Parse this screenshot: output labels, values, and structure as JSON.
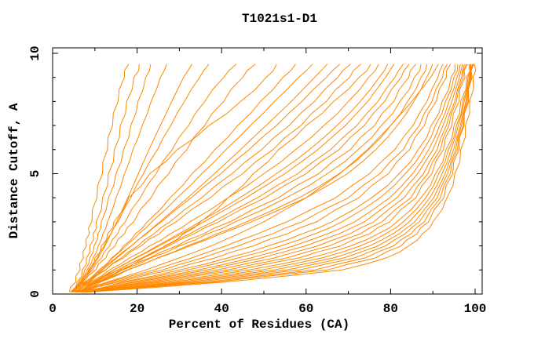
{
  "title": "T1021s1-D1",
  "chart_data": {
    "type": "line",
    "title": "T1021s1-D1",
    "xlabel": "Percent of Residues (CA)",
    "ylabel": "Distance Cutoff, A",
    "xlim": [
      0,
      100
    ],
    "ylim": [
      0,
      10
    ],
    "x_major_ticks": [
      0,
      20,
      40,
      60,
      80,
      100
    ],
    "x_minor_ticks": [
      10,
      30,
      50,
      70,
      90
    ],
    "y_major_ticks": [
      0,
      5,
      10
    ],
    "y_minor_ticks": [
      1,
      2,
      3,
      4,
      6,
      7,
      8,
      9
    ],
    "grid": false,
    "legend": "none",
    "line_color": "#ff8800",
    "axis_color": "#000000",
    "series_format": "each series lists Percent of Residues (x) at the shared y_levels (Distance Cutoff)",
    "y_levels": [
      0.08,
      0.5,
      1,
      1.5,
      2,
      2.5,
      3,
      4,
      5,
      6,
      7,
      8,
      9,
      9.55
    ],
    "series": [
      [
        4.0,
        5.5,
        6.5,
        7.3,
        8.0,
        8.7,
        9.3,
        10.5,
        11.8,
        13.0,
        14.2,
        15.5,
        17.0,
        18.0
      ],
      [
        4.2,
        5.8,
        7.0,
        8.0,
        8.8,
        9.6,
        10.3,
        11.8,
        13.2,
        14.6,
        16.0,
        17.5,
        19.2,
        20.5
      ],
      [
        4.5,
        6.2,
        7.6,
        8.8,
        9.8,
        10.7,
        11.5,
        13.2,
        15.0,
        16.8,
        18.5,
        20.2,
        22.0,
        23.2
      ],
      [
        4.3,
        6.5,
        8.2,
        9.6,
        10.8,
        11.9,
        13.0,
        15.0,
        17.0,
        19.0,
        21.2,
        23.3,
        25.5,
        27.0
      ],
      [
        4.8,
        7.0,
        9.0,
        10.8,
        12.4,
        13.8,
        15.2,
        17.8,
        20.3,
        22.8,
        25.5,
        28.2,
        31.0,
        33.0
      ],
      [
        4.4,
        6.8,
        8.8,
        10.6,
        12.2,
        13.8,
        15.5,
        18.5,
        21.5,
        24.8,
        28.0,
        31.2,
        34.8,
        37.0
      ],
      [
        4.6,
        7.2,
        9.5,
        11.6,
        13.5,
        15.4,
        17.2,
        20.8,
        24.5,
        28.3,
        32.2,
        36.0,
        40.5,
        43.5
      ],
      [
        5.0,
        7.6,
        10.2,
        12.6,
        14.8,
        17.0,
        19.2,
        23.3,
        27.5,
        31.8,
        36.0,
        40.5,
        45.0,
        48.0
      ],
      [
        4.7,
        6.8,
        8.5,
        10.0,
        11.5,
        13.0,
        14.5,
        18.0,
        23.0,
        29.5,
        37.0,
        44.5,
        50.5,
        53.0
      ],
      [
        5.2,
        8.0,
        11.0,
        14.0,
        16.8,
        19.6,
        22.4,
        27.8,
        33.0,
        38.4,
        43.8,
        49.2,
        54.5,
        57.5
      ],
      [
        4.8,
        7.8,
        11.0,
        14.2,
        17.3,
        20.4,
        23.5,
        29.5,
        35.3,
        41.0,
        46.8,
        52.5,
        58.2,
        61.5
      ],
      [
        5.4,
        8.4,
        11.8,
        15.2,
        18.6,
        22.0,
        25.4,
        32.0,
        38.3,
        44.5,
        50.5,
        56.5,
        62.0,
        65.0
      ],
      [
        4.9,
        8.0,
        11.5,
        15.0,
        18.6,
        22.2,
        25.8,
        32.8,
        39.8,
        46.5,
        53.0,
        59.0,
        64.8,
        68.0
      ],
      [
        5.6,
        8.8,
        12.5,
        16.3,
        20.2,
        24.0,
        27.8,
        35.3,
        42.5,
        49.5,
        56.0,
        62.0,
        67.5,
        70.5
      ],
      [
        5.0,
        8.5,
        12.5,
        16.8,
        21.0,
        25.2,
        29.3,
        37.3,
        45.0,
        52.2,
        58.8,
        64.8,
        70.3,
        73.0
      ],
      [
        5.8,
        10.5,
        16.0,
        21.5,
        26.5,
        31.0,
        35.0,
        41.5,
        47.5,
        53.5,
        60.0,
        66.5,
        72.5,
        75.3
      ],
      [
        5.2,
        9.0,
        13.4,
        18.2,
        23.0,
        27.8,
        32.5,
        41.5,
        50.0,
        57.5,
        64.2,
        70.0,
        74.8,
        77.2
      ],
      [
        6.0,
        9.8,
        14.5,
        19.6,
        24.7,
        29.8,
        34.8,
        44.3,
        53.0,
        60.8,
        67.3,
        72.8,
        77.3,
        79.3
      ],
      [
        5.4,
        9.5,
        14.4,
        19.8,
        25.2,
        30.5,
        35.8,
        45.8,
        55.0,
        62.8,
        69.3,
        74.6,
        78.8,
        80.8
      ],
      [
        6.2,
        10.2,
        15.5,
        21.2,
        26.8,
        32.4,
        38.0,
        48.5,
        58.0,
        65.8,
        72.0,
        77.0,
        81.0,
        83.0
      ],
      [
        5.6,
        10.0,
        15.4,
        21.5,
        27.5,
        33.4,
        39.3,
        50.3,
        60.0,
        67.8,
        73.8,
        78.6,
        82.5,
        84.4
      ],
      [
        6.4,
        10.8,
        16.6,
        23.0,
        29.4,
        35.7,
        42.0,
        53.5,
        63.0,
        70.5,
        76.2,
        80.8,
        84.3,
        86.0
      ],
      [
        5.8,
        10.5,
        16.5,
        23.2,
        30.0,
        36.6,
        43.2,
        55.3,
        65.0,
        72.3,
        77.8,
        82.2,
        85.6,
        87.2
      ],
      [
        6.6,
        11.4,
        17.8,
        24.8,
        31.8,
        38.8,
        45.8,
        58.3,
        67.8,
        74.8,
        80.0,
        84.0,
        87.2,
        88.6
      ],
      [
        6.0,
        11.0,
        17.6,
        25.0,
        32.5,
        39.8,
        47.0,
        60.0,
        69.8,
        76.5,
        81.6,
        85.5,
        88.5,
        89.9
      ],
      [
        5.5,
        13.0,
        22.0,
        30.0,
        37.5,
        44.0,
        50.0,
        60.0,
        68.0,
        74.5,
        80.0,
        85.0,
        89.5,
        91.3
      ],
      [
        6.2,
        13.5,
        24.0,
        33.0,
        41.0,
        48.5,
        55.5,
        67.0,
        75.0,
        81.0,
        85.3,
        88.6,
        91.2,
        92.4
      ],
      [
        7.0,
        14.5,
        26.0,
        35.5,
        44.0,
        52.0,
        59.0,
        70.0,
        77.5,
        83.0,
        86.8,
        89.8,
        92.3,
        93.4
      ],
      [
        6.4,
        15.5,
        28.0,
        38.5,
        47.5,
        55.5,
        62.5,
        72.5,
        79.5,
        84.5,
        88.0,
        90.8,
        93.2,
        94.2
      ],
      [
        7.2,
        16.5,
        30.0,
        41.5,
        51.0,
        59.0,
        66.0,
        75.5,
        82.0,
        86.5,
        89.6,
        92.2,
        94.3,
        95.2
      ],
      [
        6.6,
        17.5,
        32.0,
        44.0,
        54.0,
        62.0,
        68.5,
        77.5,
        83.5,
        87.8,
        90.6,
        93.0,
        95.0,
        95.9
      ],
      [
        7.4,
        19.0,
        34.5,
        47.0,
        57.0,
        65.0,
        71.5,
        79.8,
        85.2,
        89.0,
        91.6,
        93.8,
        95.7,
        96.5
      ],
      [
        6.8,
        20.0,
        36.5,
        49.5,
        59.8,
        67.8,
        73.8,
        81.5,
        86.4,
        90.0,
        92.4,
        94.5,
        96.3,
        97.0
      ],
      [
        7.6,
        21.5,
        39.0,
        52.5,
        62.8,
        70.3,
        76.0,
        83.2,
        87.8,
        91.0,
        93.2,
        95.2,
        96.8,
        97.5
      ],
      [
        7.0,
        23.0,
        41.5,
        55.5,
        65.5,
        72.8,
        78.0,
        84.8,
        88.8,
        91.8,
        93.8,
        95.6,
        97.2,
        97.9
      ],
      [
        7.8,
        24.5,
        44.0,
        58.3,
        68.2,
        75.0,
        79.8,
        86.0,
        89.8,
        92.5,
        94.5,
        96.2,
        97.6,
        98.2
      ],
      [
        7.2,
        26.0,
        46.5,
        61.0,
        70.5,
        77.0,
        81.5,
        87.2,
        90.6,
        93.1,
        95.0,
        96.6,
        98.0,
        98.5
      ],
      [
        8.0,
        28.0,
        49.5,
        63.8,
        72.8,
        78.8,
        83.0,
        88.3,
        91.4,
        93.7,
        95.6,
        97.1,
        98.3,
        98.8
      ],
      [
        7.4,
        30.0,
        52.5,
        66.5,
        75.0,
        80.5,
        84.4,
        89.3,
        92.2,
        94.3,
        96.0,
        97.4,
        98.6,
        99.0
      ],
      [
        8.2,
        32.0,
        55.5,
        69.0,
        77.0,
        82.0,
        85.7,
        90.2,
        92.9,
        94.9,
        96.5,
        97.8,
        98.8,
        99.3
      ],
      [
        7.6,
        34.0,
        58.5,
        71.5,
        78.8,
        83.4,
        86.8,
        91.0,
        93.5,
        95.4,
        96.8,
        98.0,
        99.0,
        99.4
      ],
      [
        8.4,
        36.5,
        62.0,
        74.0,
        80.7,
        84.8,
        88.0,
        91.8,
        94.1,
        95.8,
        97.2,
        98.3,
        99.2,
        99.6
      ],
      [
        7.8,
        38.5,
        65.0,
        76.5,
        82.5,
        86.2,
        89.0,
        92.6,
        94.7,
        96.2,
        97.4,
        98.5,
        99.3,
        99.7
      ],
      [
        8.6,
        41.0,
        68.5,
        79.0,
        84.3,
        87.5,
        90.0,
        93.3,
        95.2,
        96.6,
        97.7,
        98.7,
        99.5,
        99.8
      ]
    ]
  }
}
